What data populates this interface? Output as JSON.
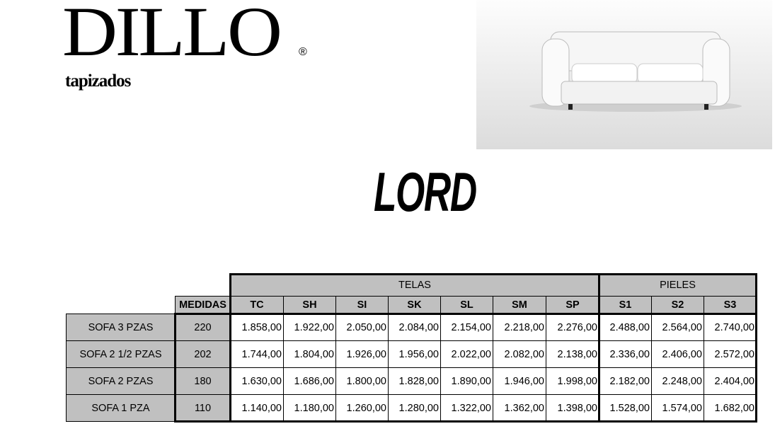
{
  "brand": {
    "logo_text": "DILLO",
    "logo_subtitle": "tapizados",
    "registered_mark": "®"
  },
  "product": {
    "title": "LORD"
  },
  "price_table": {
    "group_headers": [
      {
        "label": "TELAS"
      },
      {
        "label": "PIELES"
      }
    ],
    "measure_header": "MEDIDAS",
    "columns": [
      "TC",
      "SH",
      "SI",
      "SK",
      "SL",
      "SM",
      "SP",
      "S1",
      "S2",
      "S3"
    ],
    "rows": [
      {
        "model": "SOFA 3 PZAS",
        "size": "220",
        "prices": [
          "1.858,00",
          "1.922,00",
          "2.050,00",
          "2.084,00",
          "2.154,00",
          "2.218,00",
          "2.276,00",
          "2.488,00",
          "2.564,00",
          "2.740,00"
        ]
      },
      {
        "model": "SOFA 2 1/2 PZAS",
        "size": "202",
        "prices": [
          "1.744,00",
          "1.804,00",
          "1.926,00",
          "1.956,00",
          "2.022,00",
          "2.082,00",
          "2.138,00",
          "2.336,00",
          "2.406,00",
          "2.572,00"
        ]
      },
      {
        "model": "SOFA 2 PZAS",
        "size": "180",
        "prices": [
          "1.630,00",
          "1.686,00",
          "1.800,00",
          "1.828,00",
          "1.890,00",
          "1.946,00",
          "1.998,00",
          "2.182,00",
          "2.248,00",
          "2.404,00"
        ]
      },
      {
        "model": "SOFA 1 PZA",
        "size": "110",
        "prices": [
          "1.140,00",
          "1.180,00",
          "1.260,00",
          "1.280,00",
          "1.322,00",
          "1.362,00",
          "1.398,00",
          "1.528,00",
          "1.574,00",
          "1.682,00"
        ]
      }
    ]
  },
  "colors": {
    "header_gray": "#c0c0c0",
    "border": "#000000"
  }
}
